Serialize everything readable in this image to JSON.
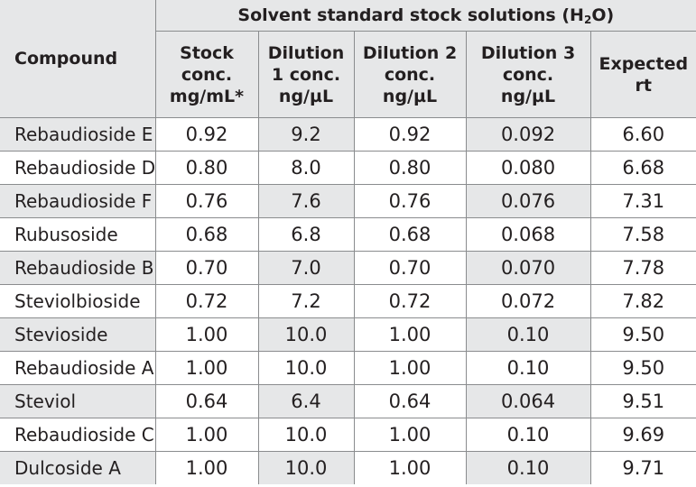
{
  "header": {
    "compound_label": "Compound",
    "group_title": "Solvent standard stock solutions (H",
    "group_sub": "2",
    "group_tail": "O)",
    "columns": [
      [
        "Stock",
        "conc.",
        "mg/mL*"
      ],
      [
        "Dilution",
        "1 conc.",
        "ng/µL"
      ],
      [
        "Dilution 2",
        "conc.",
        "ng/µL"
      ],
      [
        "Dilution 3",
        "conc.",
        "ng/µL"
      ],
      [
        "Expected",
        "rt"
      ]
    ]
  },
  "rows": [
    {
      "compound": "Rebaudioside E",
      "stock": "0.92",
      "d1": "9.2",
      "d2": "0.92",
      "d3": "0.092",
      "rt": "6.60"
    },
    {
      "compound": "Rebaudioside D",
      "stock": "0.80",
      "d1": "8.0",
      "d2": "0.80",
      "d3": "0.080",
      "rt": "6.68"
    },
    {
      "compound": "Rebaudioside F",
      "stock": "0.76",
      "d1": "7.6",
      "d2": "0.76",
      "d3": "0.076",
      "rt": "7.31"
    },
    {
      "compound": "Rubusoside",
      "stock": "0.68",
      "d1": "6.8",
      "d2": "0.68",
      "d3": "0.068",
      "rt": "7.58"
    },
    {
      "compound": "Rebaudioside B",
      "stock": "0.70",
      "d1": "7.0",
      "d2": "0.70",
      "d3": "0.070",
      "rt": "7.78"
    },
    {
      "compound": "Steviolbioside",
      "stock": "0.72",
      "d1": "7.2",
      "d2": "0.72",
      "d3": "0.072",
      "rt": "7.82"
    },
    {
      "compound": "Stevioside",
      "stock": "1.00",
      "d1": "10.0",
      "d2": "1.00",
      "d3": "0.10",
      "rt": "9.50"
    },
    {
      "compound": "Rebaudioside A",
      "stock": "1.00",
      "d1": "10.0",
      "d2": "1.00",
      "d3": "0.10",
      "rt": "9.50"
    },
    {
      "compound": "Steviol",
      "stock": "0.64",
      "d1": "6.4",
      "d2": "0.64",
      "d3": "0.064",
      "rt": "9.51"
    },
    {
      "compound": "Rebaudioside C",
      "stock": "1.00",
      "d1": "10.0",
      "d2": "1.00",
      "d3": "0.10",
      "rt": "9.69"
    },
    {
      "compound": "Dulcoside A",
      "stock": "1.00",
      "d1": "10.0",
      "d2": "1.00",
      "d3": "0.10",
      "rt": "9.71"
    }
  ],
  "colors": {
    "header_background": "#e6e7e8",
    "row_shade": "#e6e7e8",
    "border": "#8a8c8e",
    "text": "#231f20"
  }
}
